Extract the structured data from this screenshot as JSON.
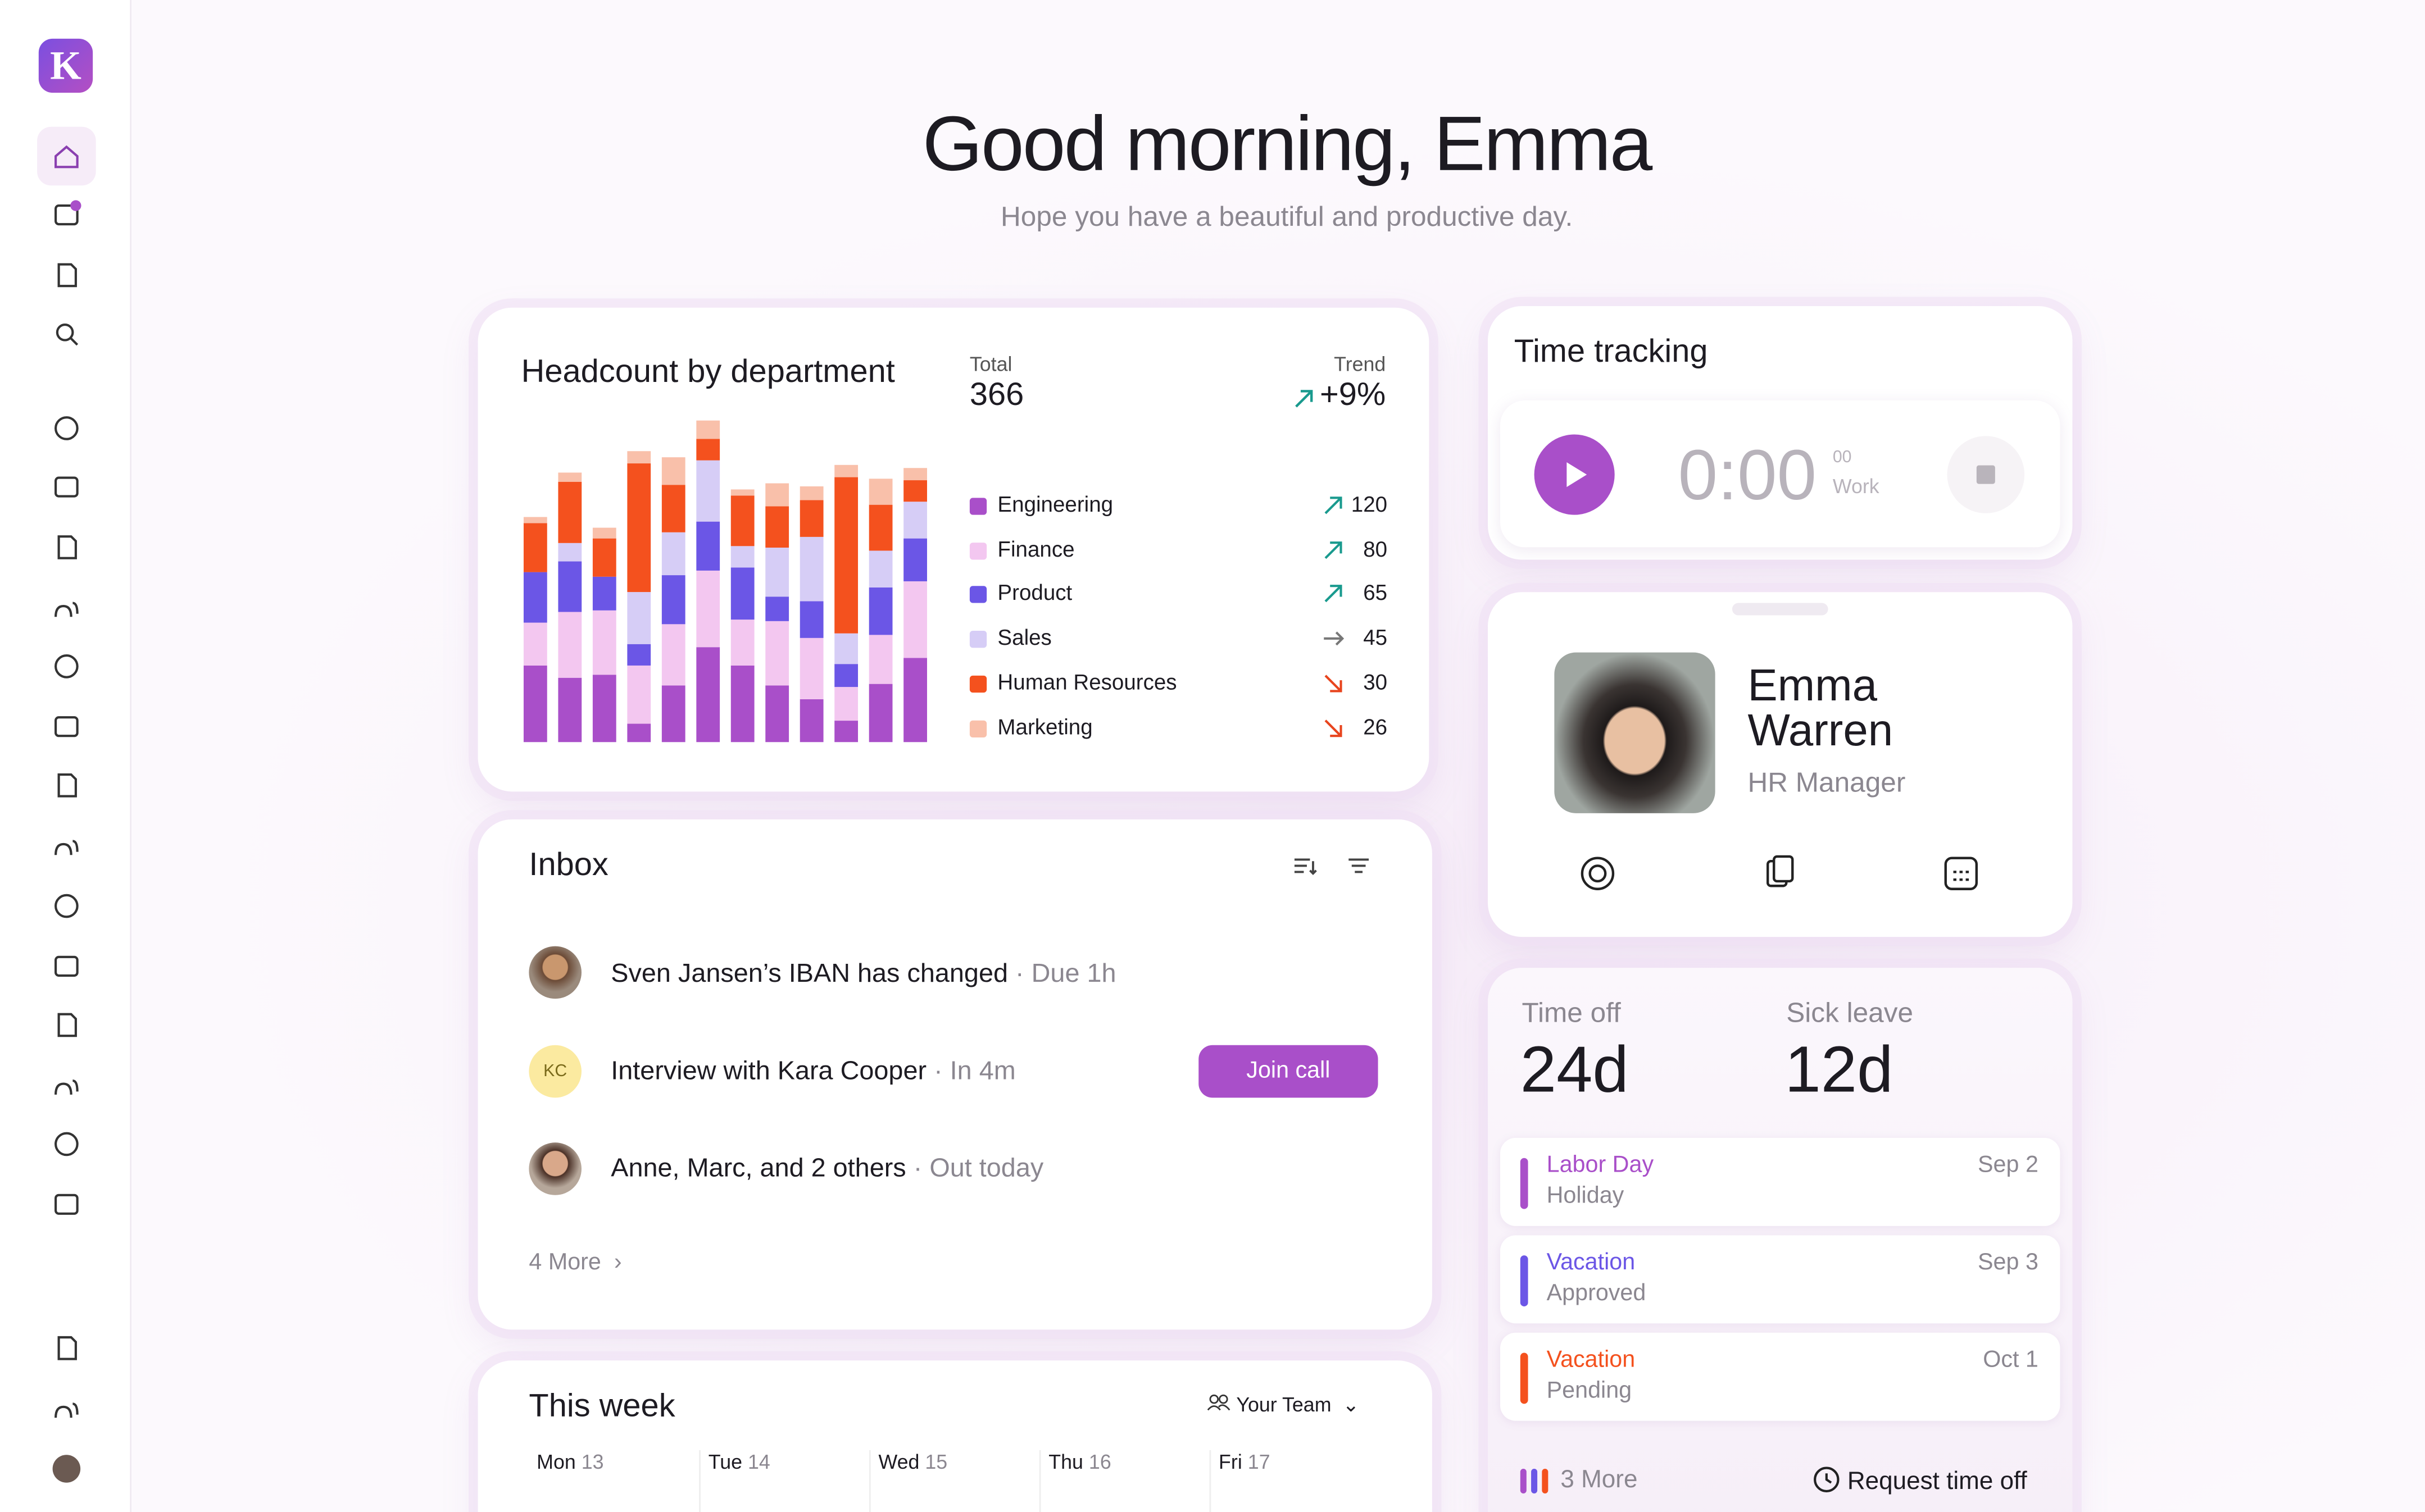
{
  "greeting": {
    "title": "Good morning, Emma",
    "subtitle": "Hope you have a beautiful and productive day."
  },
  "headcount": {
    "title": "Headcount by department",
    "total_label": "Total",
    "total": 366,
    "trend_label": "Trend",
    "trend": "+9%",
    "departments": [
      {
        "name": "Engineering",
        "value": 120,
        "color": "#a94fc9"
      },
      {
        "name": "Finance",
        "value": 80,
        "color": "#f3c7f0"
      },
      {
        "name": "Product",
        "value": 65,
        "color": "#6b56e6"
      },
      {
        "name": "Sales",
        "value": 45,
        "color": "#d6cdf6"
      },
      {
        "name": "Human Resources",
        "value": 30,
        "color": "#f4511e"
      },
      {
        "name": "Marketing",
        "value": 26,
        "color": "#f9c0aa"
      }
    ],
    "bars": [
      [
        50,
        28,
        33,
        0,
        32,
        4
      ],
      [
        42,
        43,
        33,
        12,
        40,
        6
      ],
      [
        44,
        42,
        22,
        0,
        25,
        7
      ],
      [
        12,
        38,
        14,
        34,
        84,
        8
      ],
      [
        37,
        40,
        32,
        28,
        31,
        18
      ],
      [
        62,
        50,
        32,
        40,
        14,
        12
      ],
      [
        50,
        30,
        34,
        14,
        33,
        4
      ],
      [
        37,
        42,
        16,
        32,
        27,
        15
      ],
      [
        28,
        40,
        24,
        42,
        24,
        9
      ],
      [
        14,
        22,
        15,
        20,
        102,
        8
      ],
      [
        38,
        32,
        31,
        24,
        30,
        17
      ],
      [
        55,
        50,
        28,
        24,
        14,
        8
      ]
    ]
  },
  "inbox": {
    "title": "Inbox",
    "items": [
      {
        "text": "Sven Jansen’s IBAN has changed",
        "meta": "· Due 1h"
      },
      {
        "initials": "KC",
        "text": "Interview with Kara Cooper",
        "meta": "· In 4m",
        "action": "Join call"
      },
      {
        "text": "Anne, Marc, and 2 others",
        "meta": "· Out today"
      }
    ],
    "more": "4 More"
  },
  "week": {
    "title": "This week",
    "team": "Your Team",
    "days": [
      {
        "day": "Mon",
        "date": 13
      },
      {
        "day": "Tue",
        "date": 14
      },
      {
        "day": "Wed",
        "date": 15
      },
      {
        "day": "Thu",
        "date": 16
      },
      {
        "day": "Fri",
        "date": 17
      }
    ]
  },
  "time_tracking": {
    "title": "Time tracking",
    "time": "0:00",
    "seconds": "00",
    "label": "Work"
  },
  "profile": {
    "first_name": "Emma",
    "last_name": "Warren",
    "role": "HR Manager"
  },
  "balances": {
    "time_off_label": "Time off",
    "time_off": "24d",
    "sick_label": "Sick leave",
    "sick": "12d",
    "events": [
      {
        "name": "Labor Day",
        "status": "Holiday",
        "date": "Sep 2",
        "color": "#a94fc9"
      },
      {
        "name": "Vacation",
        "status": "Approved",
        "date": "Sep 3",
        "color": "#6b56e6"
      },
      {
        "name": "Vacation",
        "status": "Pending",
        "date": "Oct 1",
        "color": "#f4511e"
      }
    ],
    "more": "3 More",
    "action": "Request time off"
  }
}
